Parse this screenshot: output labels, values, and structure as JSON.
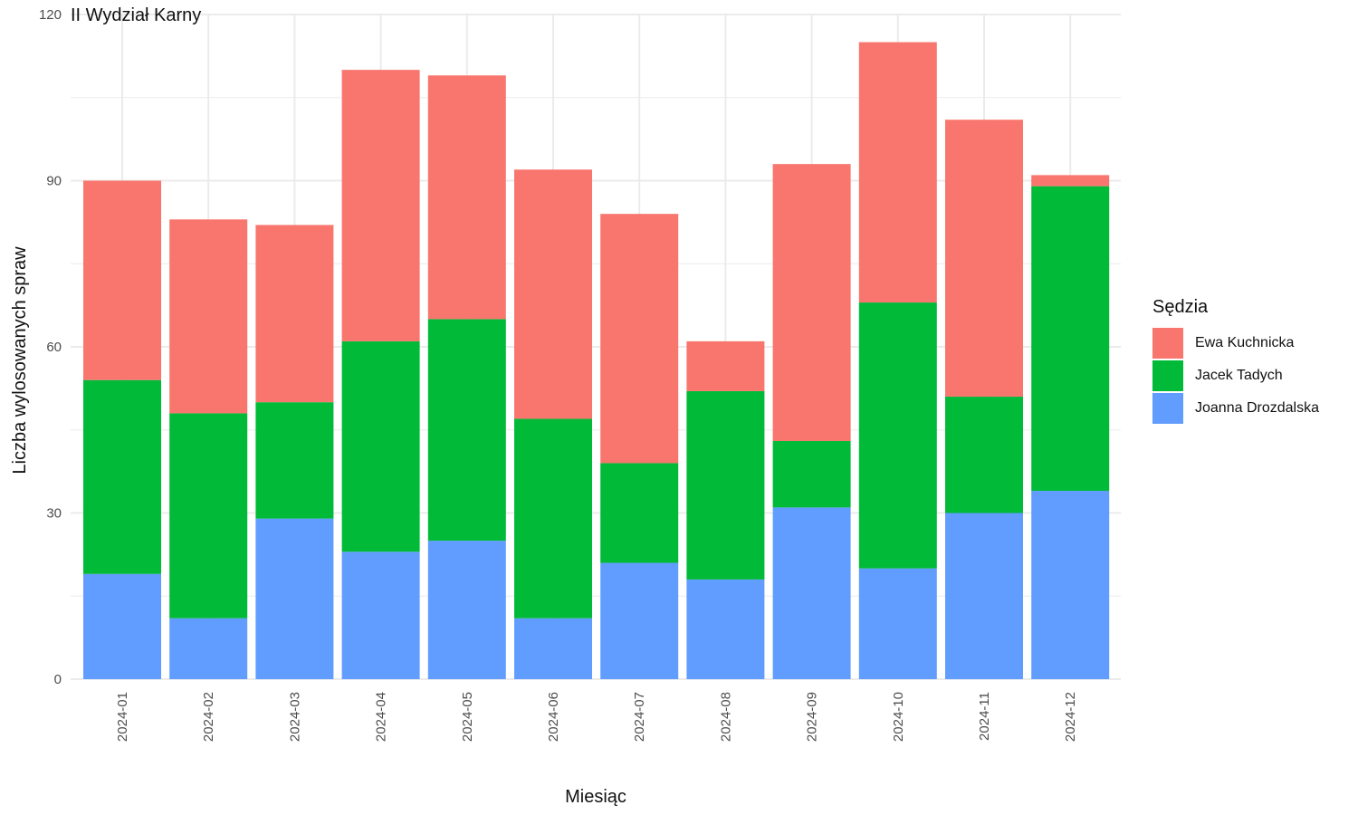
{
  "chart_data": {
    "type": "bar",
    "stacked": true,
    "title": "II Wydział Karny",
    "xlabel": "Miesiąc",
    "ylabel": "Liczba wylosowanych spraw",
    "ylim": [
      0,
      120
    ],
    "yticks": [
      0,
      30,
      60,
      90,
      120
    ],
    "grid": true,
    "legend_title": "Sędzia",
    "legend_position": "right",
    "categories": [
      "2024-01",
      "2024-02",
      "2024-03",
      "2024-04",
      "2024-05",
      "2024-06",
      "2024-07",
      "2024-08",
      "2024-09",
      "2024-10",
      "2024-11",
      "2024-12"
    ],
    "series": [
      {
        "name": "Joanna Drozdalska",
        "color": "#619CFF",
        "values": [
          19,
          11,
          29,
          23,
          25,
          11,
          21,
          18,
          31,
          20,
          30,
          34
        ]
      },
      {
        "name": "Jacek Tadych",
        "color": "#00BA38",
        "values": [
          35,
          37,
          21,
          38,
          40,
          36,
          18,
          34,
          12,
          48,
          21,
          55
        ]
      },
      {
        "name": "Ewa Kuchnicka",
        "color": "#F8766D",
        "values": [
          36,
          35,
          32,
          49,
          44,
          45,
          45,
          9,
          50,
          47,
          50,
          2
        ]
      }
    ],
    "legend_order": [
      "Ewa Kuchnicka",
      "Jacek Tadych",
      "Joanna Drozdalska"
    ]
  }
}
